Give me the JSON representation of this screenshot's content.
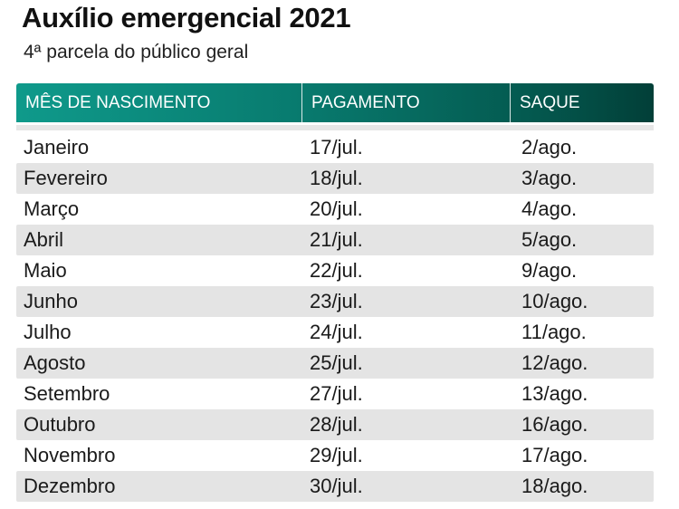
{
  "header": {
    "title": "Auxílio emergencial 2021",
    "subtitle": "4ª parcela do público geral"
  },
  "table": {
    "columns": [
      "MÊS DE NASCIMENTO",
      "PAGAMENTO",
      "SAQUE"
    ],
    "rows": [
      [
        "Janeiro",
        "17/jul.",
        "2/ago."
      ],
      [
        "Fevereiro",
        "18/jul.",
        "3/ago."
      ],
      [
        "Março",
        "20/jul.",
        "4/ago."
      ],
      [
        "Abril",
        "21/jul.",
        "5/ago."
      ],
      [
        "Maio",
        "22/jul.",
        "9/ago."
      ],
      [
        "Junho",
        "23/jul.",
        "10/ago."
      ],
      [
        "Julho",
        "24/jul.",
        "11/ago."
      ],
      [
        "Agosto",
        "25/jul.",
        "12/ago."
      ],
      [
        "Setembro",
        "27/jul.",
        "13/ago."
      ],
      [
        "Outubro",
        "28/jul.",
        "16/ago."
      ],
      [
        "Novembro",
        "29/jul.",
        "17/ago."
      ],
      [
        "Dezembro",
        "30/jul.",
        "18/ago."
      ]
    ]
  },
  "colors": {
    "header_start": "#0f9a8b",
    "header_end": "#023f38",
    "stripe": "#e4e4e4"
  }
}
